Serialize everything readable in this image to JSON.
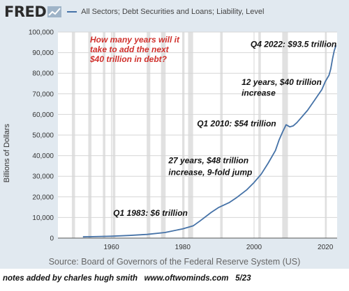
{
  "header": {
    "logo_text": "FRED",
    "legend_label": "All Sectors; Debt Securities and Loans; Liability, Level"
  },
  "source_text": "Source: Board of Governors of the Federal Reserve System (US)",
  "footer_text": "notes added by charles hugh smith   www.oftwominds.com   5/23",
  "colors": {
    "line": "#4572a7",
    "panel": "#e1e9f0",
    "plot": "#ffffff",
    "recession": "#e1e1e1",
    "annotation_red": "#d0312d"
  },
  "chart_data": {
    "type": "line",
    "ylabel": "Billions of Dollars",
    "xlim": [
      1945,
      2023.3
    ],
    "ylim": [
      0,
      100000
    ],
    "x_ticks": [
      1960,
      1980,
      2000,
      2020
    ],
    "y_ticks": [
      0,
      10000,
      20000,
      30000,
      40000,
      50000,
      60000,
      70000,
      80000,
      90000,
      100000
    ],
    "y_tick_labels": [
      "0",
      "10,000",
      "20,000",
      "30,000",
      "40,000",
      "50,000",
      "60,000",
      "70,000",
      "80,000",
      "90,000",
      "100,000"
    ],
    "grid": true,
    "recessions": [
      [
        1948.9,
        1949.8
      ],
      [
        1953.5,
        1954.4
      ],
      [
        1957.6,
        1958.3
      ],
      [
        1960.3,
        1961.1
      ],
      [
        1969.9,
        1970.9
      ],
      [
        1973.9,
        1975.2
      ],
      [
        1980.0,
        1980.5
      ],
      [
        1981.5,
        1982.9
      ],
      [
        1990.5,
        1991.2
      ],
      [
        2001.2,
        2001.9
      ],
      [
        2007.9,
        2009.5
      ],
      [
        2020.1,
        2020.4
      ]
    ],
    "series": [
      {
        "x": [
          1952,
          1955,
          1960,
          1965,
          1970,
          1975,
          1980,
          1983,
          1985,
          1988,
          1990,
          1993,
          1995,
          1998,
          2000,
          2002,
          2004,
          2006,
          2007,
          2008,
          2009,
          2010,
          2011,
          2012,
          2013,
          2014,
          2015,
          2016,
          2017,
          2018,
          2019,
          2020,
          2021,
          2021.5,
          2022,
          2022.5,
          2023
        ],
        "y": [
          600,
          700,
          900,
          1300,
          1800,
          2700,
          4500,
          6000,
          8500,
          12500,
          14800,
          17200,
          19500,
          23500,
          27000,
          31000,
          36500,
          42500,
          47500,
          51500,
          55000,
          54000,
          54500,
          56000,
          58000,
          60000,
          62000,
          64500,
          67000,
          69500,
          72000,
          76000,
          79000,
          82000,
          87000,
          91000,
          93500
        ]
      }
    ],
    "annotations": [
      {
        "text": "How many years will it",
        "x": 1954,
        "y": 95000,
        "color": "red"
      },
      {
        "text": "take to add the next",
        "x": 1954,
        "y": 90200,
        "color": "red"
      },
      {
        "text": "$40 trillion in debt?",
        "x": 1954,
        "y": 85400,
        "color": "red"
      },
      {
        "text": "Q4 2022: $93.5 trillion",
        "x": 1999,
        "y": 92700,
        "color": "black"
      },
      {
        "text": "12 years, $40 trillion",
        "x": 1996.5,
        "y": 74300,
        "color": "black"
      },
      {
        "text": "increase",
        "x": 1996.5,
        "y": 69100,
        "color": "black"
      },
      {
        "text": "Q1 2010: $54 trillion",
        "x": 1984,
        "y": 54300,
        "color": "black"
      },
      {
        "text": "27 years, $48 trillion",
        "x": 1976,
        "y": 36300,
        "color": "black"
      },
      {
        "text": "increase, 9-fold jump",
        "x": 1976,
        "y": 30600,
        "color": "black"
      },
      {
        "text": "Q1 1983:  $6 trillion",
        "x": 1960.5,
        "y": 10800,
        "color": "black"
      }
    ]
  }
}
